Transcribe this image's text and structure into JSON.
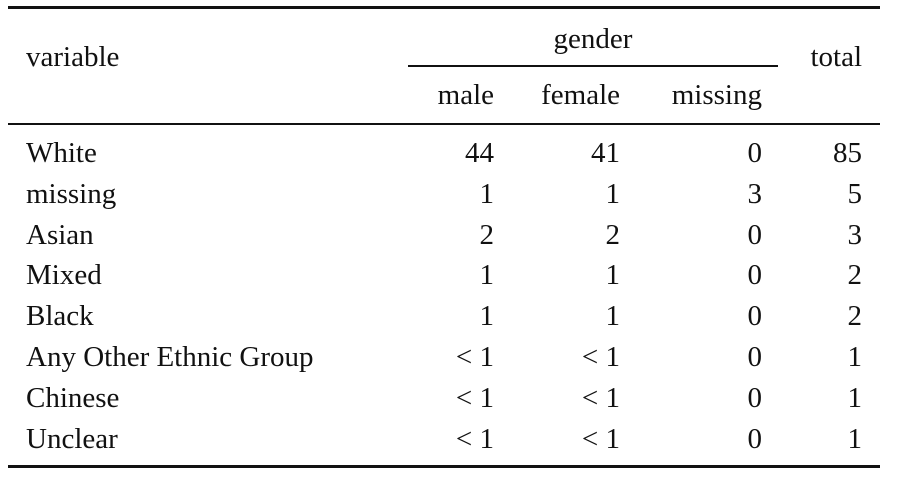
{
  "table": {
    "header": {
      "variable": "variable",
      "group": "gender",
      "total": "total",
      "subcolumns": [
        "male",
        "female",
        "missing"
      ]
    },
    "rows": [
      [
        "White",
        "44",
        "41",
        "0",
        "85"
      ],
      [
        "missing",
        "1",
        "1",
        "3",
        "5"
      ],
      [
        "Asian",
        "2",
        "2",
        "0",
        "3"
      ],
      [
        "Mixed",
        "1",
        "1",
        "0",
        "2"
      ],
      [
        "Black",
        "1",
        "1",
        "0",
        "2"
      ],
      [
        "Any Other Ethnic Group",
        "< 1",
        "< 1",
        "0",
        "1"
      ],
      [
        "Chinese",
        "< 1",
        "< 1",
        "0",
        "1"
      ],
      [
        "Unclear",
        "< 1",
        "< 1",
        "0",
        "1"
      ]
    ]
  }
}
